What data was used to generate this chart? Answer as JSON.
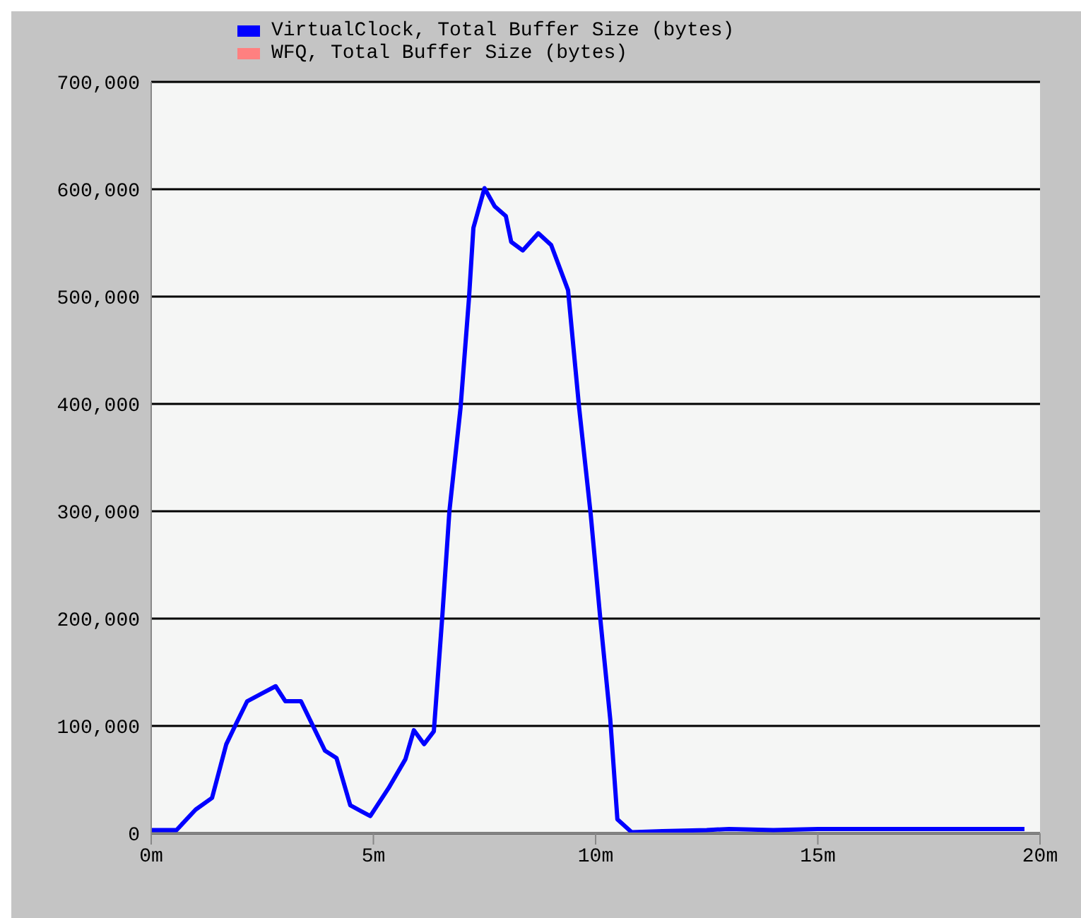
{
  "chart_data": {
    "type": "line",
    "legend": "top",
    "grid": "y",
    "marker": "none",
    "line_style": "solid",
    "xlim": [
      0,
      20
    ],
    "xticks": [
      {
        "value": 0,
        "label": "0m"
      },
      {
        "value": 5,
        "label": "5m"
      },
      {
        "value": 10,
        "label": "10m"
      },
      {
        "value": 15,
        "label": "15m"
      },
      {
        "value": 20,
        "label": "20m"
      }
    ],
    "ylim": [
      0,
      700000
    ],
    "yticks": [
      0,
      {
        "value": 100000,
        "label": "100,000"
      },
      {
        "value": 200000,
        "label": "200,000"
      },
      {
        "value": 300000,
        "label": "300,000"
      },
      {
        "value": 400000,
        "label": "400,000"
      },
      {
        "value": 500000,
        "label": "500,000"
      },
      {
        "value": 600000,
        "label": "600,000"
      },
      {
        "value": 700000,
        "label": "700,000"
      }
    ],
    "series": [
      {
        "name": "VirtualClock, Total Buffer Size (bytes)",
        "color": "#0000ff",
        "x": [
          0,
          0.57,
          1.0,
          1.37,
          1.69,
          1.91,
          2.16,
          2.48,
          2.8,
          3.02,
          3.37,
          3.91,
          4.17,
          4.48,
          4.93,
          5.34,
          5.72,
          5.91,
          6.14,
          6.36,
          6.55,
          6.71,
          6.96,
          7.15,
          7.25,
          7.5,
          7.73,
          7.98,
          8.1,
          8.36,
          8.71,
          9.0,
          9.38,
          9.63,
          9.89,
          10.11,
          10.33,
          10.49,
          10.81,
          11.5,
          12.5,
          13,
          14,
          15,
          19.65
        ],
        "values": [
          3000,
          3000,
          22000,
          33000,
          83000,
          102000,
          123000,
          130000,
          137000,
          123000,
          123000,
          77000,
          70000,
          26000,
          16000,
          42000,
          69000,
          96000,
          83000,
          95000,
          202000,
          300000,
          396000,
          498000,
          564000,
          601000,
          584000,
          575000,
          551000,
          543000,
          559000,
          548000,
          506000,
          396000,
          297000,
          198000,
          106000,
          13000,
          1000,
          2000,
          3000,
          4000,
          3000,
          4000,
          4000
        ]
      },
      {
        "name": "WFQ, Total Buffer Size (bytes)",
        "color": "#ff8080"
      }
    ]
  }
}
